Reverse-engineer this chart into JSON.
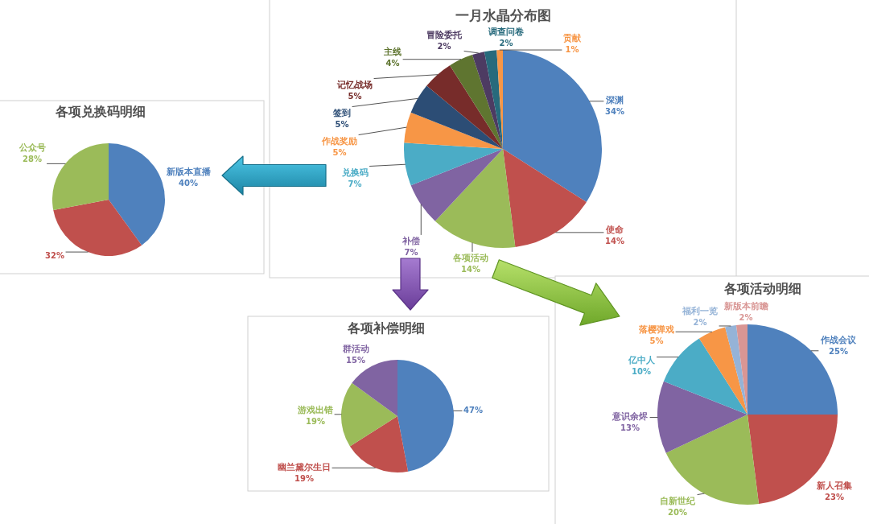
{
  "chart_data": [
    {
      "type": "pie",
      "title": "一月水晶分布图",
      "categories": [
        "深渊",
        "使命",
        "各项活动",
        "补偿",
        "兑换码",
        "作战奖励",
        "签到",
        "记忆战场",
        "主线",
        "冒险委托",
        "调查问卷",
        "贡献"
      ],
      "values": [
        34,
        14,
        14,
        7,
        7,
        5,
        5,
        5,
        4,
        2,
        2,
        1
      ],
      "value_labels": [
        "34%",
        "14%",
        "14%",
        "7%",
        "7%",
        "5%",
        "5%",
        "5%",
        "4%",
        "2%",
        "2%",
        "1%"
      ],
      "colors": [
        "#4f81bd",
        "#c0504d",
        "#9bbb59",
        "#8064a2",
        "#4bacc6",
        "#f79646",
        "#2c4d75",
        "#772c2a",
        "#5f7530",
        "#4d3b62",
        "#276a7c",
        "#f79646"
      ]
    },
    {
      "type": "pie",
      "title": "各项兑换码明细",
      "categories": [
        "新版本直播",
        null,
        "公众号"
      ],
      "values": [
        40,
        32,
        28
      ],
      "value_labels": [
        "40%",
        "32%",
        "28%"
      ],
      "colors": [
        "#4f81bd",
        "#c0504d",
        "#9bbb59"
      ]
    },
    {
      "type": "pie",
      "title": "各项补偿明细",
      "categories": [
        null,
        "幽兰黛尔生日",
        "游戏出错",
        "群活动"
      ],
      "values": [
        47,
        19,
        19,
        15
      ],
      "value_labels": [
        "47%",
        "19%",
        "19%",
        "15%"
      ],
      "colors": [
        "#4f81bd",
        "#c0504d",
        "#9bbb59",
        "#8064a2"
      ]
    },
    {
      "type": "pie",
      "title": "各项活动明细",
      "categories": [
        "作战会议",
        "新人召集",
        "自新世纪",
        "意识余烬",
        "亿中人",
        "落樱弹戏",
        "福利一览",
        "新版本前瞻"
      ],
      "values": [
        25,
        23,
        20,
        13,
        10,
        5,
        2,
        2
      ],
      "value_labels": [
        "25%",
        "23%",
        "20%",
        "13%",
        "10%",
        "5%",
        "2%",
        "2%"
      ],
      "colors": [
        "#4f81bd",
        "#c0504d",
        "#9bbb59",
        "#8064a2",
        "#4bacc6",
        "#f79646",
        "#95b3d7",
        "#d99694"
      ]
    }
  ]
}
